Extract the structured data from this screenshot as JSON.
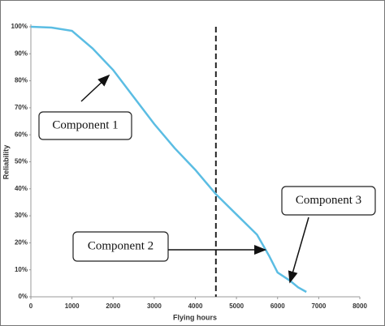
{
  "chart_data": {
    "type": "line",
    "x_label": "Flying hours",
    "y_label": "Reliability",
    "x": [
      0,
      500,
      1000,
      1500,
      2000,
      2500,
      3000,
      3500,
      4000,
      4500,
      5000,
      5500,
      5800,
      6000,
      6300,
      6500,
      6700
    ],
    "series": [
      {
        "color": "#5bbde3",
        "values": [
          100,
          99.7,
          98.5,
          92,
          84,
          74,
          64,
          55,
          47,
          38,
          30.5,
          23,
          15,
          9,
          6,
          3.5,
          1.8
        ]
      }
    ],
    "xlim": [
      0,
      8000
    ],
    "xticks": [
      0,
      1000,
      2000,
      3000,
      4000,
      5000,
      6000,
      7000,
      8000
    ],
    "ylim": [
      0,
      100
    ],
    "yticks": [
      {
        "value": 0,
        "label": "0%"
      },
      {
        "value": 10,
        "label": "10%"
      },
      {
        "value": 20,
        "label": "20%"
      },
      {
        "value": 30,
        "label": "30%"
      },
      {
        "value": 40,
        "label": "40%"
      },
      {
        "value": 50,
        "label": "50%"
      },
      {
        "value": 60,
        "label": "60%"
      },
      {
        "value": 70,
        "label": "70%"
      },
      {
        "value": 80,
        "label": "80%"
      },
      {
        "value": 90,
        "label": "90%"
      },
      {
        "value": 100,
        "label": "100%"
      }
    ],
    "grid": false,
    "reference_line": {
      "x": 4500
    },
    "annotations": [
      {
        "text": "Component 1",
        "point": [
          1900,
          82
        ]
      },
      {
        "text": "Component 2",
        "point": [
          5700,
          17.4
        ]
      },
      {
        "text": "Component 3",
        "point": [
          6300,
          5.4
        ]
      }
    ]
  }
}
